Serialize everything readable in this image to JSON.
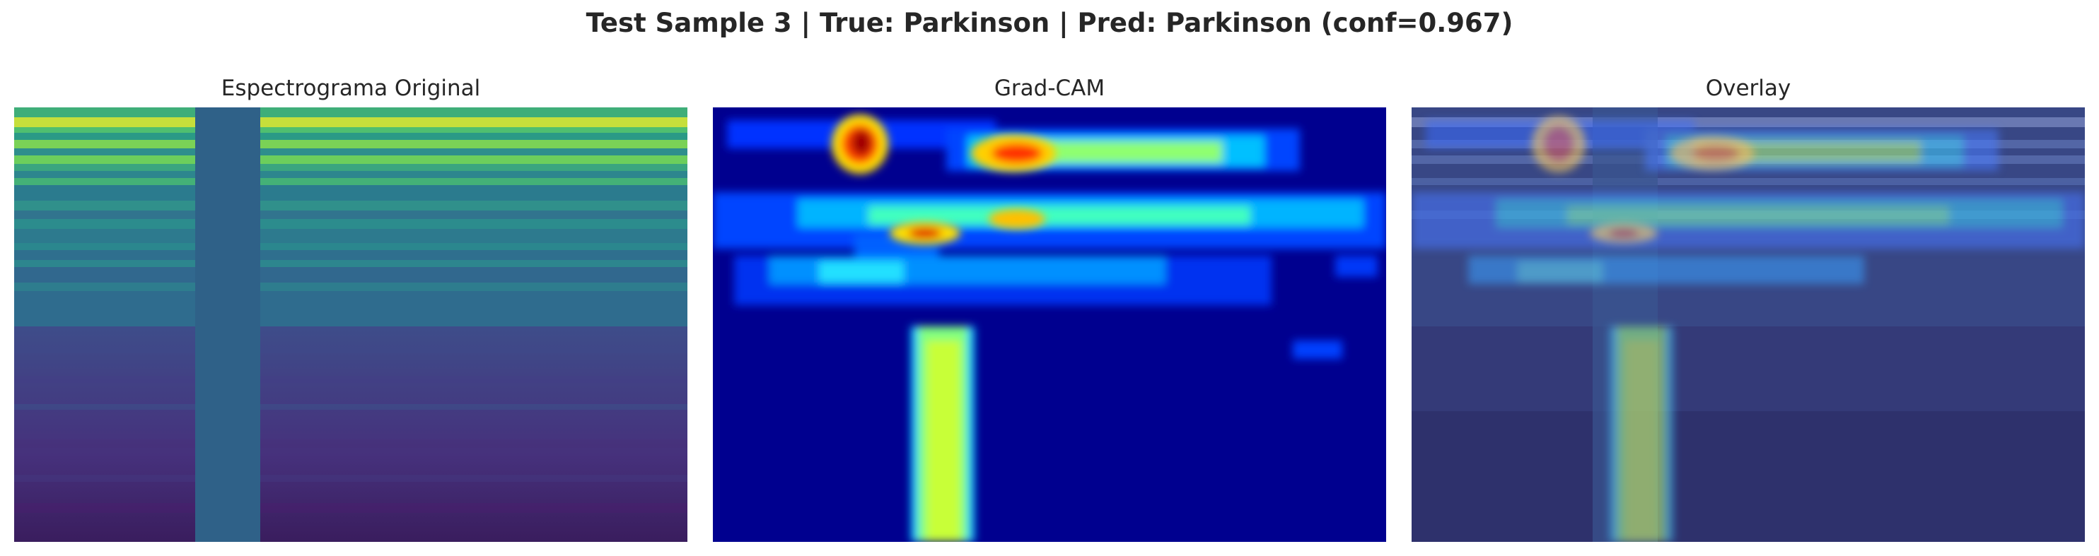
{
  "figure": {
    "suptitle": "Test Sample 3 | True: Parkinson | Pred: Parkinson (conf=0.967)",
    "panels": [
      {
        "title": "Espectrograma Original",
        "colormap": "viridis"
      },
      {
        "title": "Grad-CAM",
        "colormap": "jet"
      },
      {
        "title": "Overlay",
        "colormap": "jet over spectrogram (alpha blend)"
      }
    ]
  },
  "colors": {
    "text": "#262626",
    "masked_band": "#2f6188",
    "jet_background": "#00008f"
  }
}
